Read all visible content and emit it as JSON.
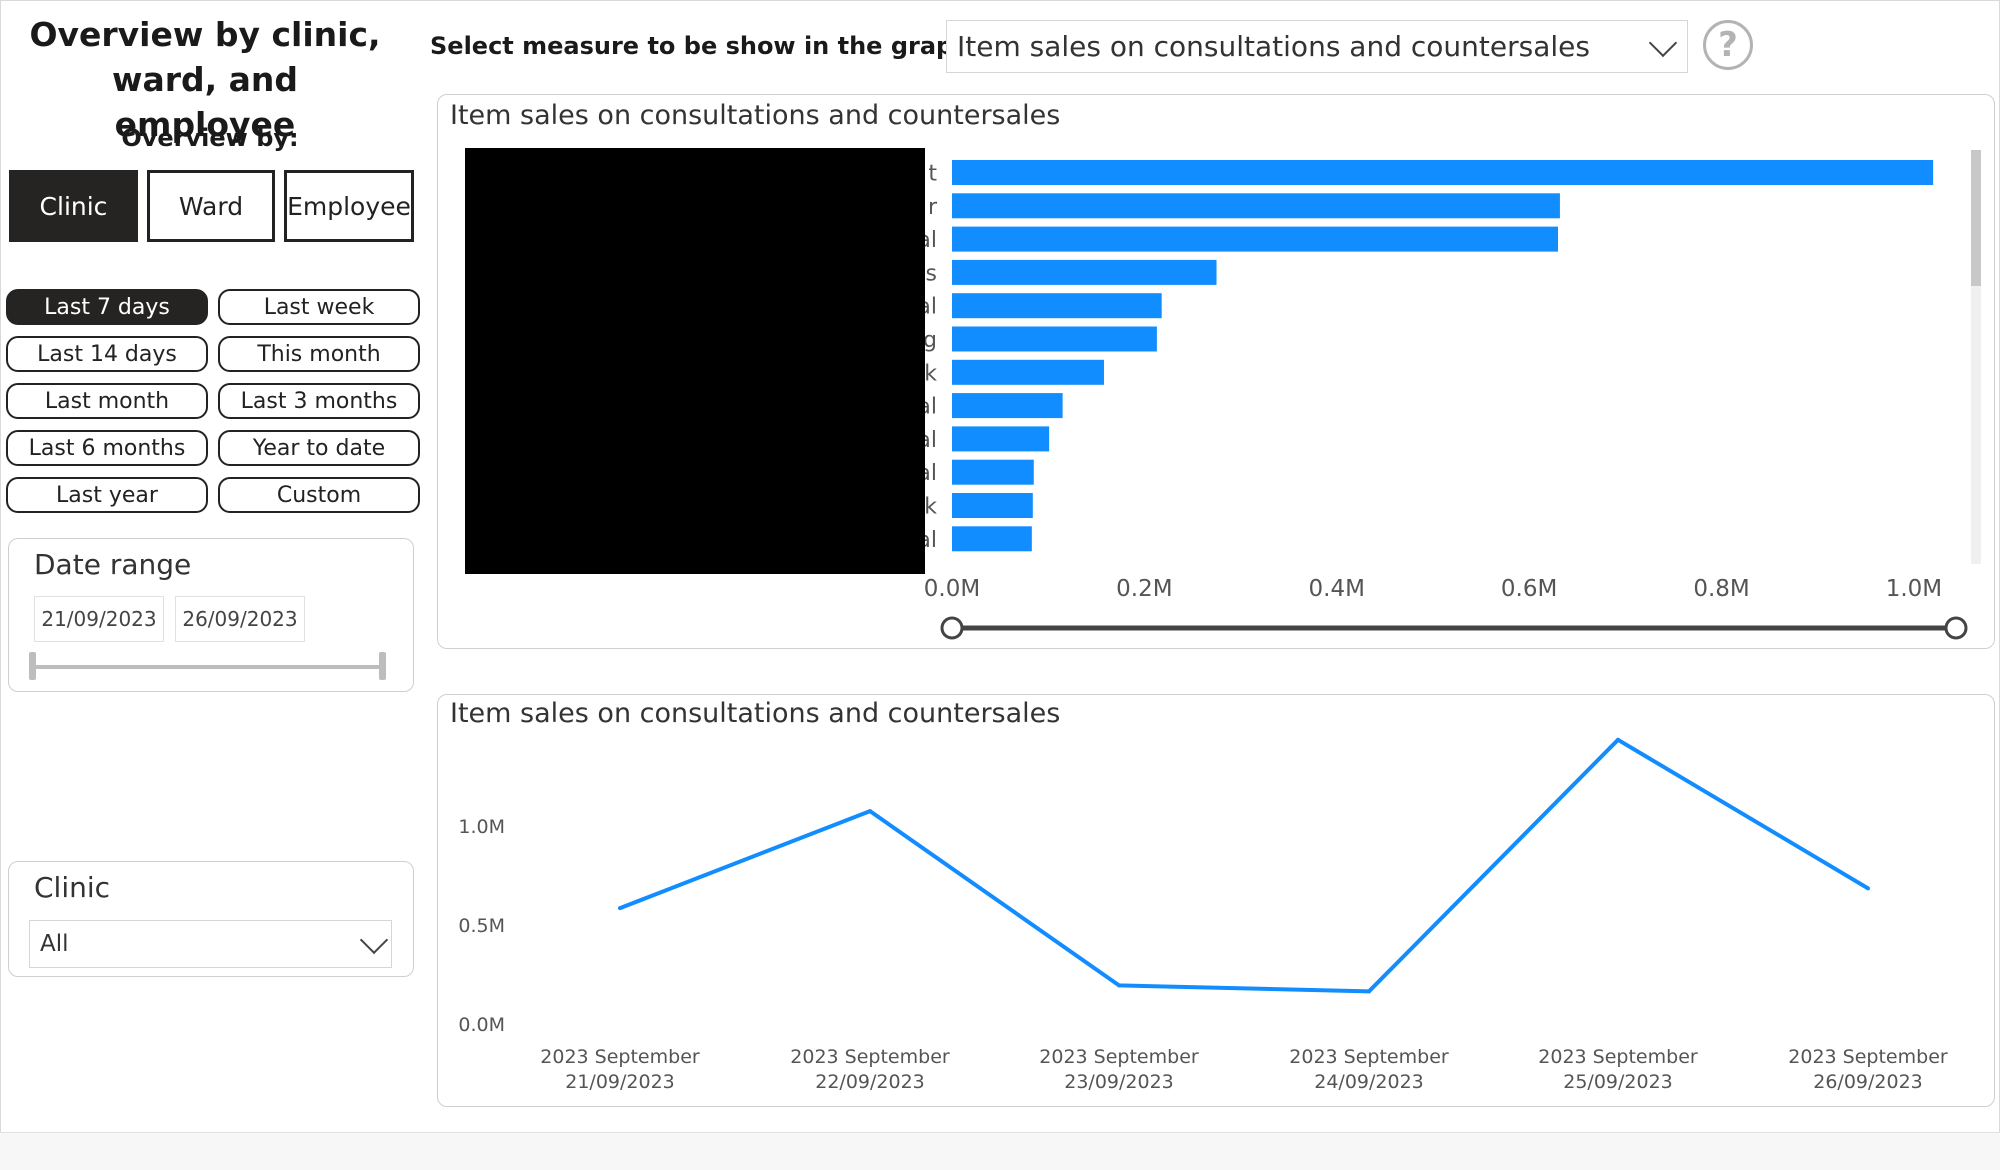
{
  "page": {
    "title": "Overview by clinic,\nward, and employee",
    "overview_label": "Overview by:",
    "measure_label": "Select measure to be show in the graphs:",
    "help_icon": "question-mark-icon"
  },
  "overview_buttons": [
    {
      "label": "Clinic",
      "active": true
    },
    {
      "label": "Ward",
      "active": false
    },
    {
      "label": "Employee",
      "active": false
    }
  ],
  "period_buttons": [
    {
      "label": "Last 7 days",
      "active": true
    },
    {
      "label": "Last week",
      "active": false
    },
    {
      "label": "Last 14 days",
      "active": false
    },
    {
      "label": "This month",
      "active": false
    },
    {
      "label": "Last month",
      "active": false
    },
    {
      "label": "Last 3 months",
      "active": false
    },
    {
      "label": "Last 6 months",
      "active": false
    },
    {
      "label": "Year to date",
      "active": false
    },
    {
      "label": "Last year",
      "active": false
    },
    {
      "label": "Custom",
      "active": false
    }
  ],
  "date_range": {
    "title": "Date range",
    "start": "21/09/2023",
    "end": "26/09/2023"
  },
  "clinic_filter": {
    "title": "Clinic",
    "value": "All"
  },
  "measure_select": {
    "value": "Item sales on consultations and countersales"
  },
  "colors": {
    "accent": "#118DFF",
    "active_button": "#252423"
  },
  "bar_chart_card": {
    "title": "Item sales on consultations and countersales"
  },
  "line_chart_card": {
    "title": "Item sales on consultations and countersales"
  },
  "chart_data": [
    {
      "type": "bar",
      "orientation": "horizontal",
      "title": "Item sales on consultations and countersales",
      "categories_visible_suffix": [
        "t",
        "r",
        "al",
        "s",
        "al",
        "g",
        "k",
        "al",
        "al",
        "al",
        "k",
        "al"
      ],
      "values": [
        1020000,
        632000,
        630000,
        275000,
        218000,
        213000,
        158000,
        115000,
        101000,
        85000,
        84000,
        83000
      ],
      "xlim": [
        0,
        1050000
      ],
      "x_ticks": [
        "0.0M",
        "0.2M",
        "0.4M",
        "0.6M",
        "0.8M",
        "1.0M"
      ],
      "x_tick_values": [
        0,
        200000,
        400000,
        600000,
        800000,
        1000000
      ],
      "grid": false,
      "color": "#118DFF"
    },
    {
      "type": "line",
      "title": "Item sales on consultations and countersales",
      "x": [
        "2023 September 21/09/2023",
        "2023 September 22/09/2023",
        "2023 September 23/09/2023",
        "2023 September 24/09/2023",
        "2023 September 25/09/2023",
        "2023 September 26/09/2023"
      ],
      "x_labels": [
        [
          "2023 September",
          "21/09/2023"
        ],
        [
          "2023 September",
          "22/09/2023"
        ],
        [
          "2023 September",
          "23/09/2023"
        ],
        [
          "2023 September",
          "24/09/2023"
        ],
        [
          "2023 September",
          "25/09/2023"
        ],
        [
          "2023 September",
          "26/09/2023"
        ]
      ],
      "values": [
        590000,
        1080000,
        200000,
        170000,
        1440000,
        690000
      ],
      "ylim": [
        0,
        1550000
      ],
      "y_ticks": [
        "0.0M",
        "0.5M",
        "1.0M"
      ],
      "y_tick_values": [
        0,
        500000,
        1000000
      ],
      "grid": false,
      "color": "#118DFF"
    }
  ]
}
